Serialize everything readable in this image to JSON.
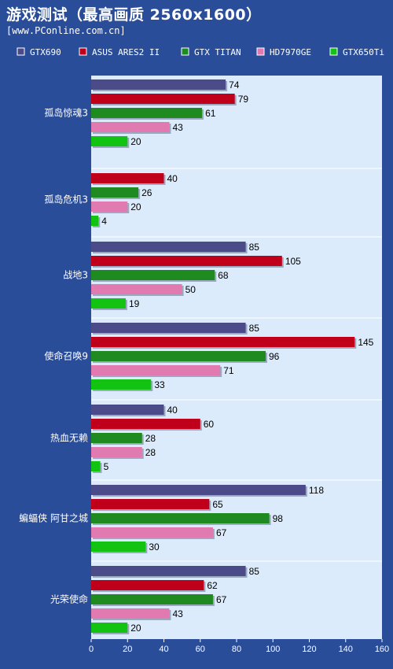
{
  "title": "游戏测试（最高画质 2560x1600）",
  "source": "[www.PConline.com.cn]",
  "colors": {
    "background": "#2a4d9a",
    "plot_bg": "#dcebfb",
    "text_light": "#ffffff",
    "text_dark": "#000000"
  },
  "chart_data": {
    "type": "bar",
    "orientation": "horizontal",
    "categories": [
      "孤岛惊魂3",
      "孤岛危机3",
      "战地3",
      "使命召唤9",
      "热血无赖",
      "蝙蝠侠 阿甘之城",
      "光荣使命"
    ],
    "series": [
      {
        "name": "GTX690",
        "color": "#4b4b8a",
        "values": [
          74,
          null,
          85,
          85,
          40,
          118,
          85
        ]
      },
      {
        "name": "ASUS ARES2 II",
        "color": "#c0001a",
        "values": [
          79,
          40,
          105,
          145,
          60,
          65,
          62
        ]
      },
      {
        "name": "GTX TITAN",
        "color": "#1f8a1f",
        "values": [
          61,
          26,
          68,
          96,
          28,
          98,
          67
        ]
      },
      {
        "name": "HD7970GE",
        "color": "#e07ab0",
        "values": [
          43,
          20,
          50,
          71,
          28,
          67,
          43
        ]
      },
      {
        "name": "GTX650Ti",
        "color": "#12c312",
        "values": [
          20,
          4,
          19,
          33,
          5,
          30,
          20
        ]
      }
    ],
    "x_ticks": [
      0,
      20,
      40,
      60,
      80,
      100,
      120,
      140,
      160
    ],
    "xlim": [
      0,
      160
    ],
    "grid": false,
    "legend": "top"
  }
}
